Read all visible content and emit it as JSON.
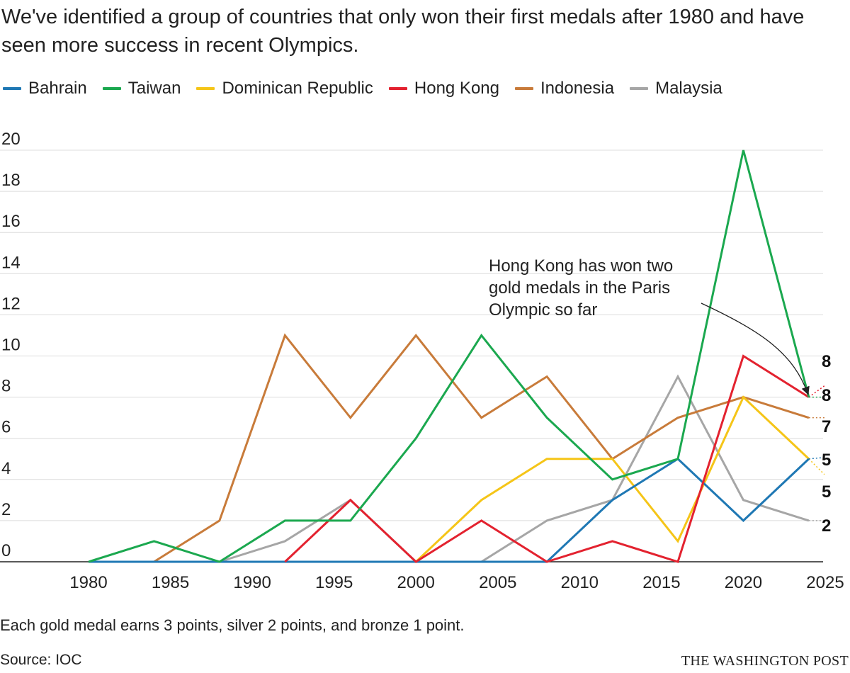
{
  "title": "We've identified a group of countries that only won their first medals after 1980 and have seen more success in recent Olympics.",
  "note": "Each gold medal earns 3 points, silver 2 points, and bronze 1 point.",
  "source": "Source: IOC",
  "credit": "THE WASHINGTON POST",
  "chart_data": {
    "type": "line",
    "title": "",
    "xlabel": "",
    "ylabel": "",
    "xlim": [
      1976,
      2025
    ],
    "ylim": [
      0,
      20
    ],
    "x_ticks": [
      "1980",
      "1985",
      "1990",
      "1995",
      "2000",
      "2005",
      "2010",
      "2015",
      "2020",
      "2025"
    ],
    "y_ticks": [
      "0",
      "2",
      "4",
      "6",
      "8",
      "10",
      "12",
      "14",
      "16",
      "18",
      "20"
    ],
    "grid": true,
    "legend_position": "top-left",
    "x": [
      1980,
      1984,
      1988,
      1992,
      1996,
      2000,
      2004,
      2008,
      2012,
      2016,
      2020,
      2024
    ],
    "series": [
      {
        "name": "Bahrain",
        "color": "#1f78b4",
        "values": [
          0,
          0,
          0,
          0,
          0,
          0,
          0,
          0,
          3,
          5,
          2,
          5
        ],
        "projected": 5
      },
      {
        "name": "Taiwan",
        "color": "#1ba84f",
        "values": [
          0,
          1,
          0,
          2,
          2,
          6,
          11,
          7,
          4,
          5,
          20,
          8
        ],
        "projected": 8
      },
      {
        "name": "Dominican Republic",
        "color": "#f5c518",
        "values": [
          null,
          null,
          null,
          null,
          null,
          0,
          3,
          5,
          5,
          1,
          8,
          5
        ],
        "projected": 5
      },
      {
        "name": "Hong Kong",
        "color": "#e3222f",
        "values": [
          null,
          null,
          null,
          0,
          3,
          0,
          2,
          0,
          1,
          0,
          10,
          8
        ],
        "projected": 8
      },
      {
        "name": "Indonesia",
        "color": "#c87b3a",
        "values": [
          null,
          0,
          2,
          11,
          7,
          11,
          7,
          9,
          5,
          7,
          8,
          7
        ],
        "projected": 7
      },
      {
        "name": "Malaysia",
        "color": "#a6a6a6",
        "values": [
          null,
          null,
          0,
          1,
          3,
          0,
          0,
          2,
          3,
          9,
          3,
          2
        ],
        "projected": 2
      }
    ],
    "end_labels": [
      "8",
      "8",
      "7",
      "5",
      "5",
      "2"
    ],
    "annotation": {
      "lines": [
        "Hong Kong has won two",
        "gold medals in the Paris",
        "Olympic so far"
      ],
      "target": {
        "x": 2024,
        "y": 8,
        "series": "Hong Kong"
      }
    }
  }
}
